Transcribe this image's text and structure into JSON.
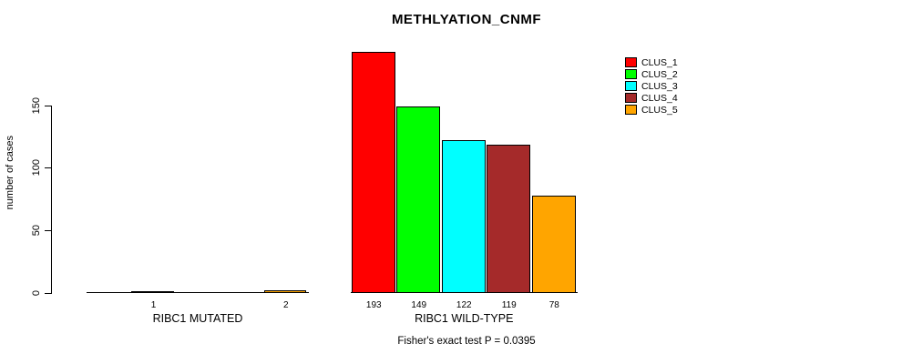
{
  "title": "METHLYATION_CNMF",
  "footer": "Fisher's exact test P = 0.0395",
  "chart_data": {
    "type": "bar",
    "title": "METHLYATION_CNMF",
    "ylabel": "number of cases",
    "xlabel": "",
    "yticks": [
      0,
      50,
      100,
      150
    ],
    "ytick_labels": [
      "0",
      "50",
      "100",
      "150"
    ],
    "ylim": [
      0,
      200
    ],
    "grid": false,
    "legend_position": "top-right",
    "legend": [
      {
        "label": "CLUS_1",
        "color": "#ff0000"
      },
      {
        "label": "CLUS_2",
        "color": "#00ff00"
      },
      {
        "label": "CLUS_3",
        "color": "#00ffff"
      },
      {
        "label": "CLUS_4",
        "color": "#a52a2a"
      },
      {
        "label": "CLUS_5",
        "color": "#ffa500"
      }
    ],
    "groups": [
      {
        "label": "RIBC1 MUTATED",
        "bars": [
          {
            "cluster": "CLUS_1",
            "value": 0,
            "label": ""
          },
          {
            "cluster": "CLUS_2",
            "value": 1,
            "label": "1"
          },
          {
            "cluster": "CLUS_3",
            "value": 0,
            "label": ""
          },
          {
            "cluster": "CLUS_4",
            "value": 0,
            "label": ""
          },
          {
            "cluster": "CLUS_5",
            "value": 2,
            "label": "2"
          }
        ]
      },
      {
        "label": "RIBC1 WILD-TYPE",
        "bars": [
          {
            "cluster": "CLUS_1",
            "value": 193,
            "label": "193"
          },
          {
            "cluster": "CLUS_2",
            "value": 149,
            "label": "149"
          },
          {
            "cluster": "CLUS_3",
            "value": 122,
            "label": "122"
          },
          {
            "cluster": "CLUS_4",
            "value": 119,
            "label": "119"
          },
          {
            "cluster": "CLUS_5",
            "value": 78,
            "label": "78"
          }
        ]
      }
    ],
    "annotation": "Fisher's exact test P = 0.0395"
  }
}
